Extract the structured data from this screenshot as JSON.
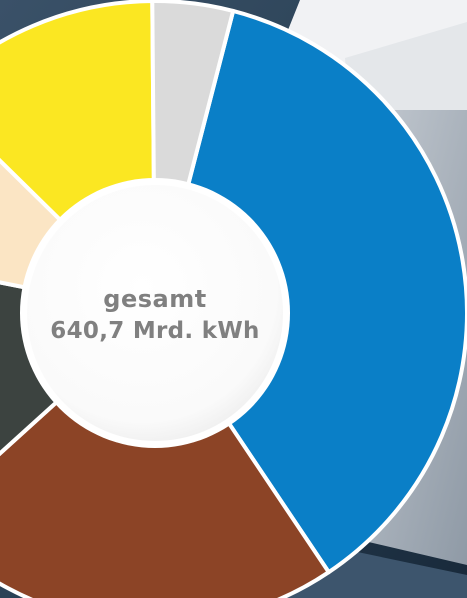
{
  "chart_data": {
    "type": "pie",
    "title": "",
    "center_label": {
      "title": "gesamt",
      "value": "640,7 Mrd. kWh"
    },
    "slices": [
      {
        "value": 39.5,
        "color": "#0a7fc7"
      },
      {
        "value": 24.5,
        "color": "#8c4426"
      },
      {
        "value": 16.0,
        "color": "#3c4340"
      },
      {
        "value": 10.0,
        "color": "#fbe5c4"
      },
      {
        "value": 13.5,
        "color": "#fbe722"
      },
      {
        "value": 4.5,
        "color": "#dadada"
      }
    ],
    "legend": "none"
  },
  "background": {
    "panel_color": "#e9ebee",
    "dark_color": "#1f3447"
  }
}
